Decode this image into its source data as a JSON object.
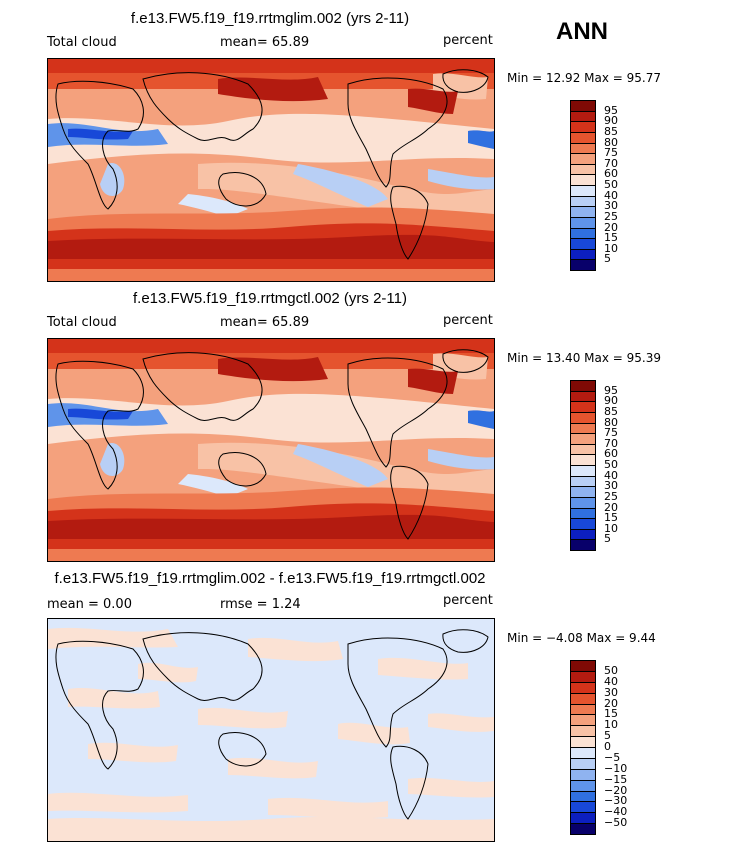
{
  "season": "ANN",
  "colors": {
    "abs_scale": [
      "#08006a",
      "#0c1fbf",
      "#1848d8",
      "#3070e0",
      "#5f94ea",
      "#8fb3f0",
      "#b8cff5",
      "#dce8fb",
      "#fbe2d4",
      "#f8c2a6",
      "#f4a17d",
      "#ee7a51",
      "#e5542e",
      "#d4331a",
      "#b31b10",
      "#7f0a05"
    ],
    "diff_scale": [
      "#08006a",
      "#0c1fbf",
      "#1848d8",
      "#3070e0",
      "#5f94ea",
      "#8fb3f0",
      "#b8cff5",
      "#dce8fb",
      "#fbe2d4",
      "#f8c2a6",
      "#f4a17d",
      "#ee7a51",
      "#e5542e",
      "#d4331a",
      "#b31b10",
      "#7f0a05"
    ]
  },
  "panels": [
    {
      "title": "f.e13.FW5.f19_f19.rrtmglim.002 (yrs 2-11)",
      "left_label": "Total cloud",
      "center_label": "mean=  65.89",
      "right_label": "percent",
      "min_max": "Min =  12.92 Max =  95.77",
      "levels": [
        "95",
        "90",
        "85",
        "80",
        "75",
        "70",
        "60",
        "50",
        "40",
        "30",
        "25",
        "20",
        "15",
        "10",
        "5"
      ]
    },
    {
      "title": "f.e13.FW5.f19_f19.rrtmgctl.002 (yrs 2-11)",
      "left_label": "Total cloud",
      "center_label": "mean=  65.89",
      "right_label": "percent",
      "min_max": "Min =  13.40 Max =  95.39",
      "levels": [
        "95",
        "90",
        "85",
        "80",
        "75",
        "70",
        "60",
        "50",
        "40",
        "30",
        "25",
        "20",
        "15",
        "10",
        "5"
      ]
    },
    {
      "title": "f.e13.FW5.f19_f19.rrtmglim.002 - f.e13.FW5.f19_f19.rrtmgctl.002",
      "left_label": "mean =   0.00",
      "center_label": "rmse =   1.24",
      "right_label": "percent",
      "min_max": "Min = −4.08 Max =   9.44",
      "levels": [
        "50",
        "40",
        "30",
        "20",
        "15",
        "10",
        "5",
        "0",
        "−5",
        "−10",
        "−15",
        "−20",
        "−30",
        "−40",
        "−50"
      ]
    }
  ],
  "chart_data": [
    {
      "type": "heatmap",
      "title": "f.e13.FW5.f19_f19.rrtmglim.002 (yrs 2-11)",
      "variable": "Total cloud",
      "units": "percent",
      "mean": 65.89,
      "min": 12.92,
      "max": 95.77,
      "contour_levels": [
        5,
        10,
        15,
        20,
        25,
        30,
        40,
        50,
        60,
        70,
        75,
        80,
        85,
        90,
        95
      ]
    },
    {
      "type": "heatmap",
      "title": "f.e13.FW5.f19_f19.rrtmgctl.002 (yrs 2-11)",
      "variable": "Total cloud",
      "units": "percent",
      "mean": 65.89,
      "min": 13.4,
      "max": 95.39,
      "contour_levels": [
        5,
        10,
        15,
        20,
        25,
        30,
        40,
        50,
        60,
        70,
        75,
        80,
        85,
        90,
        95
      ]
    },
    {
      "type": "heatmap",
      "title": "f.e13.FW5.f19_f19.rrtmglim.002 - f.e13.FW5.f19_f19.rrtmgctl.002",
      "units": "percent",
      "mean": 0.0,
      "rmse": 1.24,
      "min": -4.08,
      "max": 9.44,
      "contour_levels": [
        -50,
        -40,
        -30,
        -20,
        -15,
        -10,
        -5,
        0,
        5,
        10,
        15,
        20,
        30,
        40,
        50
      ]
    }
  ]
}
